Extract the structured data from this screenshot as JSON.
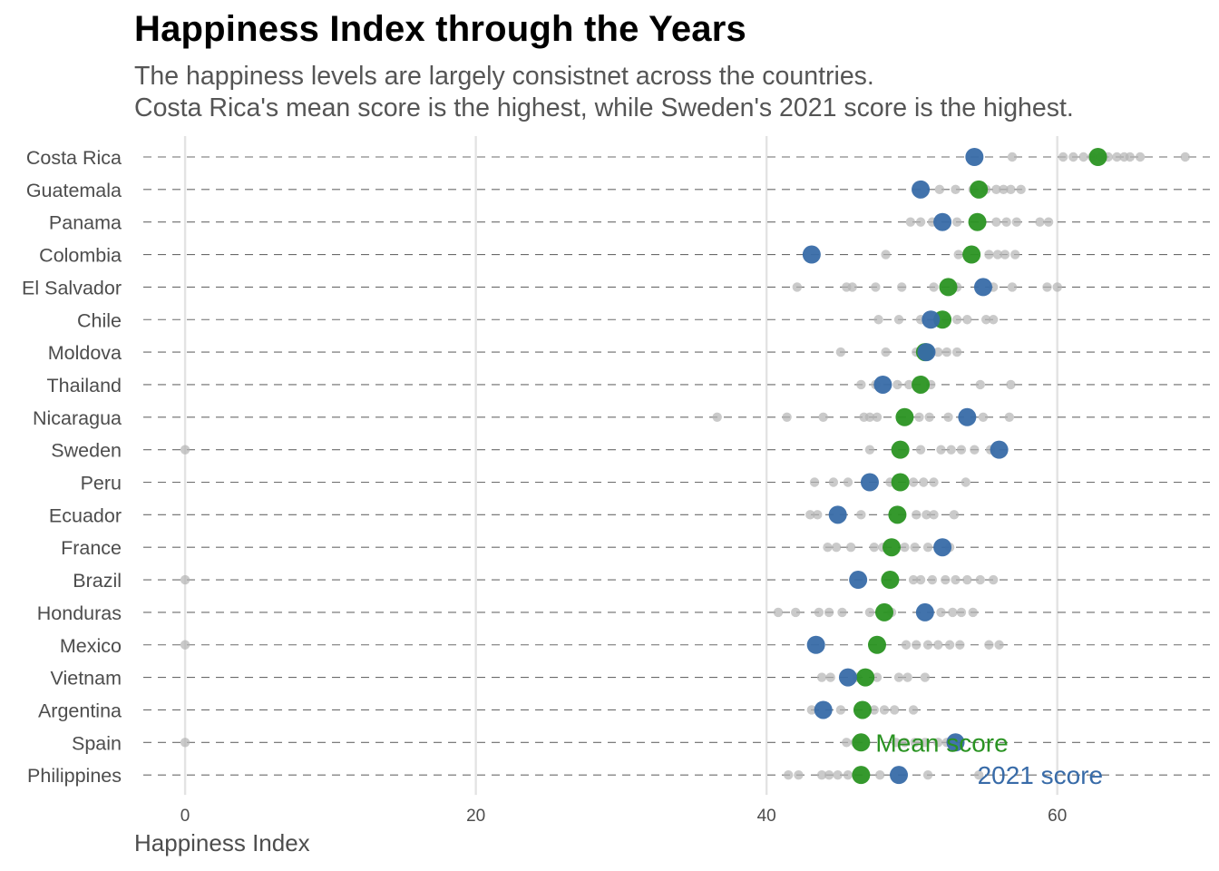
{
  "chart_data": {
    "type": "scatter",
    "title": "Happiness Index through the Years",
    "subtitle": [
      "The happiness levels are largely consistnet across the countries.",
      "Costa Rica's mean score is the highest, while Sweden's 2021 score is the highest."
    ],
    "xlabel": "Happiness Index",
    "ylabel": "",
    "xlim": [
      -3.5,
      70.5
    ],
    "x_ticks": [
      0,
      20,
      40,
      60
    ],
    "grid": "vertical major lines, dashed horizontal row lines",
    "colors": {
      "mean": "#2a9322",
      "score_2021": "#386ba8",
      "other_years": "#b3b3b3"
    },
    "annotations": [
      {
        "text": "Mean score",
        "x": 47.5,
        "country": "Spain",
        "color": "#2a9322"
      },
      {
        "text": "2021 score",
        "x": 54.5,
        "country": "Philippines",
        "color": "#386ba8"
      }
    ],
    "countries": [
      {
        "name": "Costa Rica",
        "mean": 62.8,
        "score_2021": 54.3,
        "other_years": [
          56.9,
          60.4,
          61.1,
          61.8,
          62.4,
          63.0,
          63.5,
          64.1,
          64.6,
          65.0,
          65.7,
          68.8
        ]
      },
      {
        "name": "Guatemala",
        "mean": 54.6,
        "score_2021": 50.6,
        "other_years": [
          51.9,
          53.0,
          54.2,
          55.1,
          55.8,
          56.3,
          56.8,
          57.5
        ]
      },
      {
        "name": "Panama",
        "mean": 54.5,
        "score_2021": 52.1,
        "other_years": [
          49.9,
          50.6,
          51.4,
          53.1,
          55.8,
          56.5,
          57.2,
          58.8,
          59.4
        ]
      },
      {
        "name": "Colombia",
        "mean": 54.1,
        "score_2021": 43.1,
        "other_years": [
          48.2,
          53.2,
          55.3,
          55.9,
          56.4,
          57.1
        ]
      },
      {
        "name": "El Salvador",
        "mean": 52.5,
        "score_2021": 54.9,
        "other_years": [
          42.1,
          45.5,
          45.9,
          47.5,
          49.3,
          51.5,
          53.1,
          55.6,
          56.9,
          59.3,
          60.0
        ]
      },
      {
        "name": "Chile",
        "mean": 52.1,
        "score_2021": 51.3,
        "other_years": [
          47.7,
          49.1,
          50.6,
          52.4,
          53.1,
          53.8,
          55.1,
          55.6
        ]
      },
      {
        "name": "Moldova",
        "mean": 50.9,
        "score_2021": 51.0,
        "other_years": [
          45.1,
          48.2,
          50.3,
          51.2,
          51.8,
          52.4,
          53.1
        ]
      },
      {
        "name": "Thailand",
        "mean": 50.6,
        "score_2021": 48.0,
        "other_years": [
          46.5,
          47.5,
          49.0,
          49.8,
          51.3,
          54.7,
          56.8
        ]
      },
      {
        "name": "Nicaragua",
        "mean": 49.5,
        "score_2021": 53.8,
        "other_years": [
          36.6,
          41.4,
          43.9,
          46.7,
          47.1,
          47.6,
          50.5,
          51.2,
          52.5,
          54.9,
          56.7
        ]
      },
      {
        "name": "Sweden",
        "mean": 49.2,
        "score_2021": 56.0,
        "other_years": [
          0.0,
          47.1,
          50.6,
          52.0,
          52.7,
          53.4,
          54.3,
          55.4
        ]
      },
      {
        "name": "Peru",
        "mean": 49.2,
        "score_2021": 47.1,
        "other_years": [
          43.3,
          44.6,
          45.6,
          48.5,
          50.1,
          50.8,
          51.5,
          53.7
        ]
      },
      {
        "name": "Ecuador",
        "mean": 49.0,
        "score_2021": 44.9,
        "other_years": [
          43.0,
          43.5,
          46.5,
          50.3,
          51.0,
          51.5,
          52.9
        ]
      },
      {
        "name": "France",
        "mean": 48.6,
        "score_2021": 52.1,
        "other_years": [
          44.2,
          44.8,
          45.8,
          47.4,
          48.0,
          49.5,
          50.2,
          51.1,
          52.6
        ]
      },
      {
        "name": "Brazil",
        "mean": 48.5,
        "score_2021": 46.3,
        "other_years": [
          0.0,
          50.1,
          50.6,
          51.4,
          52.3,
          53.0,
          53.8,
          54.7,
          55.6
        ]
      },
      {
        "name": "Honduras",
        "mean": 48.1,
        "score_2021": 50.9,
        "other_years": [
          40.8,
          42.0,
          43.6,
          44.3,
          45.2,
          47.1,
          48.6,
          52.0,
          52.8,
          53.4,
          54.2
        ]
      },
      {
        "name": "Mexico",
        "mean": 47.6,
        "score_2021": 43.4,
        "other_years": [
          0.0,
          49.6,
          50.3,
          51.1,
          51.8,
          52.6,
          53.3,
          55.3,
          56.0
        ]
      },
      {
        "name": "Vietnam",
        "mean": 46.8,
        "score_2021": 45.6,
        "other_years": [
          43.8,
          44.4,
          46.2,
          47.6,
          49.1,
          49.7,
          50.9
        ]
      },
      {
        "name": "Argentina",
        "mean": 46.6,
        "score_2021": 43.9,
        "other_years": [
          43.1,
          45.1,
          47.4,
          48.1,
          48.8,
          50.1
        ]
      },
      {
        "name": "Spain",
        "mean": 46.5,
        "score_2021": 53.0,
        "other_years": [
          0.0,
          45.5,
          46.1,
          48.9,
          49.5,
          50.2,
          50.9,
          51.8,
          52.4
        ]
      },
      {
        "name": "Philippines",
        "mean": 46.5,
        "score_2021": 49.1,
        "other_years": [
          41.5,
          42.2,
          43.8,
          44.3,
          44.9,
          45.6,
          47.8,
          51.1,
          54.6
        ]
      }
    ]
  }
}
